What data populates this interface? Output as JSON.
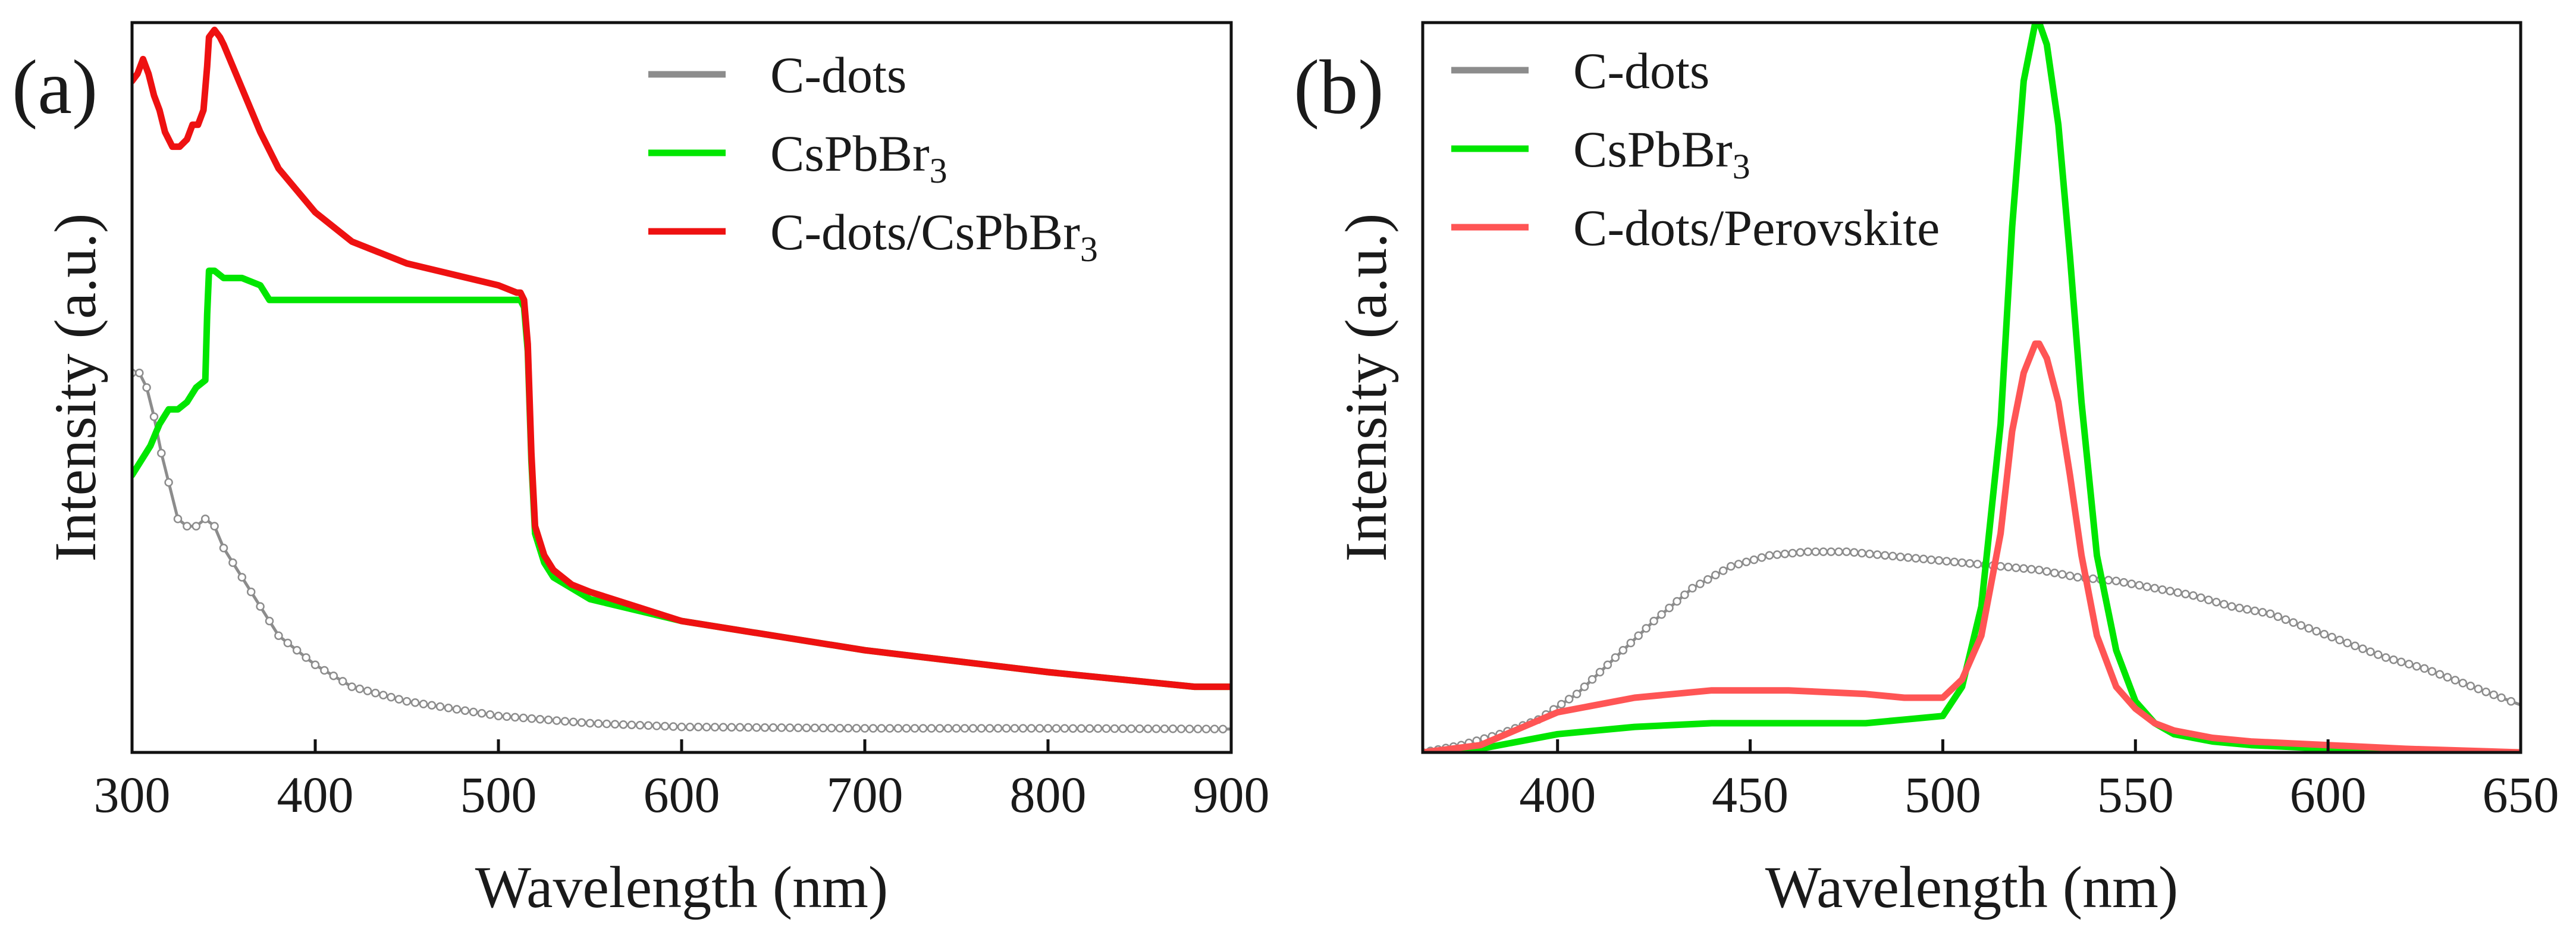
{
  "chart_data": [
    {
      "type": "line",
      "panel_label": "(a)",
      "title": "",
      "xlabel": "Wavelength (nm)",
      "ylabel": "Intensity (a.u.)",
      "xlim": [
        300,
        900
      ],
      "ylim": [
        0,
        1
      ],
      "yticks_shown": false,
      "grid": false,
      "xticks": [
        300,
        400,
        500,
        600,
        700,
        800,
        900
      ],
      "xtick_labels": [
        "300",
        "400",
        "500",
        "600",
        "700",
        "800",
        "900"
      ],
      "legend_position": "top-center",
      "series": [
        {
          "name": "C-dots",
          "label_main": "C-dots",
          "label_sub": "",
          "color": "#8c8c8c",
          "marker": "open-circle",
          "x": [
            300,
            304,
            308,
            312,
            316,
            320,
            325,
            330,
            335,
            340,
            345,
            350,
            360,
            370,
            380,
            400,
            420,
            450,
            500,
            550,
            600,
            700,
            800,
            900
          ],
          "y": [
            0.52,
            0.52,
            0.5,
            0.46,
            0.41,
            0.37,
            0.32,
            0.31,
            0.31,
            0.32,
            0.31,
            0.28,
            0.24,
            0.2,
            0.16,
            0.12,
            0.09,
            0.07,
            0.05,
            0.04,
            0.035,
            0.033,
            0.033,
            0.032
          ]
        },
        {
          "name": "CsPbBr3",
          "label_main": "CsPbBr",
          "label_sub": "3",
          "color": "#00e600",
          "marker": "none",
          "x": [
            300,
            305,
            310,
            315,
            320,
            325,
            330,
            335,
            340,
            341,
            342,
            345,
            350,
            360,
            370,
            375,
            380,
            400,
            450,
            500,
            510,
            512,
            514,
            516,
            518,
            520,
            525,
            530,
            540,
            550,
            600,
            700,
            800,
            880,
            900
          ],
          "y": [
            0.38,
            0.4,
            0.42,
            0.45,
            0.47,
            0.47,
            0.48,
            0.5,
            0.51,
            0.6,
            0.66,
            0.66,
            0.65,
            0.65,
            0.64,
            0.62,
            0.62,
            0.62,
            0.62,
            0.62,
            0.62,
            0.62,
            0.61,
            0.55,
            0.4,
            0.3,
            0.26,
            0.24,
            0.225,
            0.21,
            0.18,
            0.14,
            0.11,
            0.09,
            0.09
          ]
        },
        {
          "name": "C-dots/CsPbBr3",
          "label_main": "C-dots/CsPbBr",
          "label_sub": "3",
          "color": "#ee1111",
          "marker": "none",
          "x": [
            300,
            303,
            306,
            309,
            312,
            315,
            318,
            322,
            326,
            330,
            333,
            336,
            339,
            341,
            342,
            345,
            348,
            350,
            355,
            360,
            370,
            380,
            400,
            420,
            450,
            500,
            510,
            512,
            514,
            516,
            518,
            520,
            525,
            530,
            540,
            550,
            600,
            700,
            800,
            880,
            900
          ],
          "y": [
            0.92,
            0.93,
            0.95,
            0.93,
            0.9,
            0.88,
            0.85,
            0.83,
            0.83,
            0.84,
            0.86,
            0.86,
            0.88,
            0.94,
            0.98,
            0.99,
            0.98,
            0.97,
            0.94,
            0.91,
            0.85,
            0.8,
            0.74,
            0.7,
            0.67,
            0.64,
            0.63,
            0.63,
            0.62,
            0.56,
            0.41,
            0.31,
            0.27,
            0.25,
            0.23,
            0.22,
            0.18,
            0.14,
            0.11,
            0.09,
            0.09
          ]
        }
      ]
    },
    {
      "type": "line",
      "panel_label": "(b)",
      "title": "",
      "xlabel": "Wavelength (nm)",
      "ylabel": "Intensity (a.u.)",
      "xlim": [
        365,
        650
      ],
      "ylim": [
        0,
        1
      ],
      "yticks_shown": false,
      "grid": false,
      "xticks": [
        400,
        450,
        500,
        550,
        600,
        650
      ],
      "xtick_labels": [
        "400",
        "450",
        "500",
        "550",
        "600",
        "650"
      ],
      "legend_position": "top-left",
      "series": [
        {
          "name": "C-dots",
          "label_main": "C-dots",
          "label_sub": "",
          "color": "#8c8c8c",
          "marker": "open-circle",
          "x": [
            365,
            375,
            385,
            395,
            405,
            415,
            425,
            435,
            445,
            455,
            465,
            475,
            485,
            495,
            505,
            515,
            525,
            535,
            545,
            555,
            565,
            575,
            585,
            595,
            605,
            615,
            625,
            635,
            645,
            650
          ],
          "y": [
            0.0,
            0.01,
            0.025,
            0.045,
            0.08,
            0.13,
            0.18,
            0.225,
            0.255,
            0.27,
            0.275,
            0.275,
            0.27,
            0.265,
            0.26,
            0.255,
            0.25,
            0.24,
            0.235,
            0.225,
            0.215,
            0.2,
            0.19,
            0.17,
            0.15,
            0.13,
            0.115,
            0.095,
            0.075,
            0.065
          ]
        },
        {
          "name": "CsPbBr3",
          "label_main": "CsPbBr",
          "label_sub": "3",
          "color": "#00e600",
          "marker": "none",
          "x": [
            365,
            380,
            400,
            420,
            440,
            460,
            480,
            490,
            500,
            505,
            510,
            515,
            518,
            521,
            524,
            525,
            527,
            530,
            533,
            536,
            540,
            545,
            550,
            555,
            560,
            570,
            580,
            600,
            620,
            650
          ],
          "y": [
            0.0,
            0.005,
            0.025,
            0.035,
            0.04,
            0.04,
            0.04,
            0.045,
            0.05,
            0.09,
            0.2,
            0.45,
            0.72,
            0.92,
            1.0,
            1.0,
            0.97,
            0.86,
            0.68,
            0.48,
            0.27,
            0.14,
            0.07,
            0.04,
            0.025,
            0.015,
            0.01,
            0.005,
            0.002,
            0.0
          ]
        },
        {
          "name": "C-dots/Perovskite",
          "label_main": "C-dots/Perovskite",
          "label_sub": "",
          "color": "#ff5555",
          "marker": "none",
          "x": [
            365,
            380,
            400,
            420,
            440,
            460,
            480,
            490,
            500,
            505,
            510,
            515,
            518,
            521,
            524,
            525,
            527,
            530,
            533,
            536,
            540,
            545,
            550,
            555,
            560,
            570,
            580,
            600,
            620,
            650
          ],
          "y": [
            0.0,
            0.01,
            0.055,
            0.075,
            0.085,
            0.085,
            0.08,
            0.075,
            0.075,
            0.1,
            0.16,
            0.3,
            0.44,
            0.52,
            0.56,
            0.56,
            0.54,
            0.48,
            0.38,
            0.27,
            0.16,
            0.09,
            0.06,
            0.04,
            0.03,
            0.02,
            0.015,
            0.01,
            0.005,
            0.0
          ]
        }
      ]
    }
  ]
}
